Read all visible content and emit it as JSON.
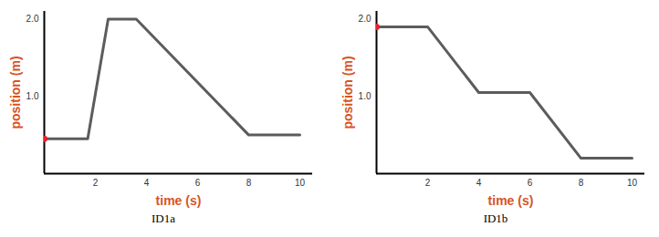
{
  "chart_data": [
    {
      "type": "line",
      "title": "ID1a",
      "xlabel": "time (s)",
      "ylabel": "position (m)",
      "x": [
        0,
        1.7,
        2.5,
        3.6,
        8,
        10
      ],
      "values": [
        0.45,
        0.45,
        2,
        2,
        0.5,
        0.5
      ],
      "color": "#5c5c5c",
      "xlim": [
        0,
        10.5
      ],
      "xticks": [
        2,
        4,
        6,
        8,
        10
      ],
      "ylim": [
        0,
        2.1
      ],
      "yticks": [
        1,
        2
      ],
      "grid": false
    },
    {
      "type": "line",
      "title": "ID1b",
      "xlabel": "time (s)",
      "ylabel": "position (m)",
      "x": [
        0,
        2,
        4,
        6,
        8,
        10
      ],
      "values": [
        1.9,
        1.9,
        1.05,
        1.05,
        0.2,
        0.2
      ],
      "color": "#5c5c5c",
      "xlim": [
        0,
        10.5
      ],
      "xticks": [
        2,
        4,
        6,
        8,
        10
      ],
      "ylim": [
        0,
        2.1
      ],
      "yticks": [
        1,
        2
      ],
      "grid": false
    }
  ]
}
